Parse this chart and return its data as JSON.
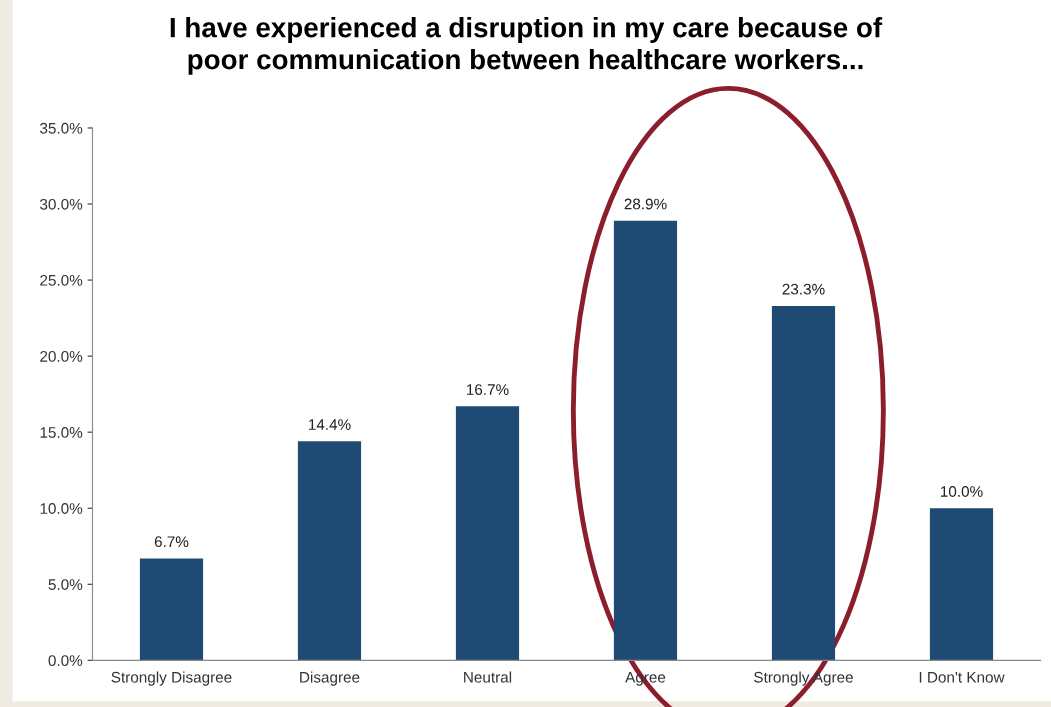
{
  "chart_data": {
    "type": "bar",
    "title": "I have experienced a disruption in my care because of\npoor communication between healthcare workers...",
    "categories": [
      "Strongly Disagree",
      "Disagree",
      "Neutral",
      "Agree",
      "Strongly Agree",
      "I Don't Know"
    ],
    "values": [
      6.7,
      14.4,
      16.7,
      28.9,
      23.3,
      10.0
    ],
    "value_labels": [
      "6.7%",
      "14.4%",
      "16.7%",
      "28.9%",
      "23.3%",
      "10.0%"
    ],
    "color": "#1f4a73",
    "ylim": [
      0,
      35
    ],
    "yticks": [
      {
        "value": 0,
        "label": "0.0%"
      },
      {
        "value": 5,
        "label": "5.0%"
      },
      {
        "value": 10,
        "label": "10.0%"
      },
      {
        "value": 15,
        "label": "15.0%"
      },
      {
        "value": 20,
        "label": "20.0%"
      },
      {
        "value": 25,
        "label": "25.0%"
      },
      {
        "value": 30,
        "label": "30.0%"
      },
      {
        "value": 35,
        "label": "35.0%"
      }
    ],
    "grid": false
  }
}
